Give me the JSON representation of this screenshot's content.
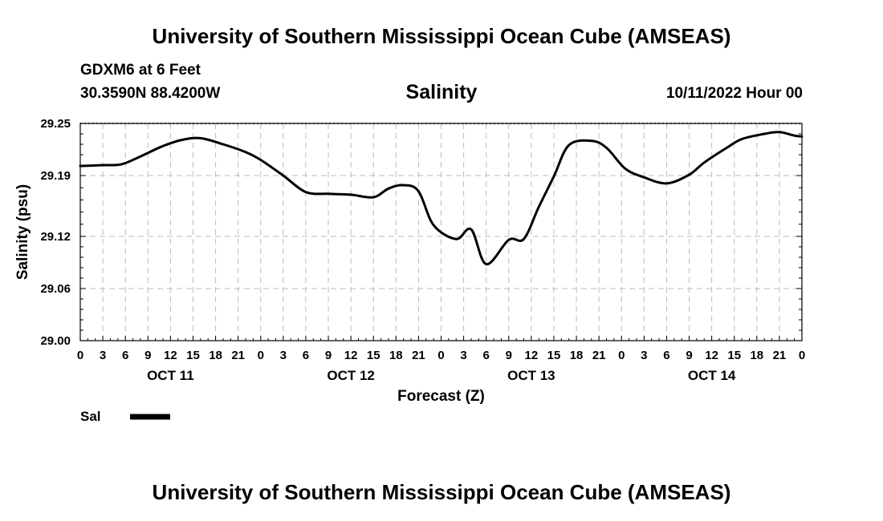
{
  "header": {
    "title": "University of Southern Mississippi Ocean Cube (AMSEAS)",
    "station": "GDXM6 at 6 Feet",
    "coords": "30.3590N  88.4200W",
    "subtitle": "Salinity",
    "datetime": "10/11/2022 Hour 00"
  },
  "footer": {
    "title": "University of Southern Mississippi Ocean Cube (AMSEAS)"
  },
  "colors": {
    "line": "#000000",
    "grid": "#bbbbbb",
    "background": "#ffffff"
  },
  "chart_data": {
    "type": "line",
    "title": "Salinity",
    "xlabel": "Forecast (Z)",
    "ylabel": "Salinity (psu)",
    "ylim": [
      29.0,
      29.25
    ],
    "xlim": [
      0,
      96
    ],
    "y_ticks": [
      "29.25",
      "29.19",
      "29.12",
      "29.06",
      "29.00"
    ],
    "x_tick_labels": [
      "0",
      "3",
      "6",
      "9",
      "12",
      "15",
      "18",
      "21",
      "0",
      "3",
      "6",
      "9",
      "12",
      "15",
      "18",
      "21",
      "0",
      "3",
      "6",
      "9",
      "12",
      "15",
      "18",
      "21",
      "0",
      "3",
      "6",
      "9",
      "12",
      "15",
      "18",
      "21",
      "0"
    ],
    "day_labels": [
      {
        "label": "OCT 11",
        "hour": 12
      },
      {
        "label": "OCT 12",
        "hour": 36
      },
      {
        "label": "OCT 13",
        "hour": 60
      },
      {
        "label": "OCT 14",
        "hour": 84
      }
    ],
    "grid": true,
    "legend": [
      {
        "name": "Sal",
        "position": "bottom-left"
      }
    ],
    "series": [
      {
        "name": "Sal",
        "x": [
          0,
          3,
          5.5,
          8,
          11,
          13.5,
          16,
          19,
          22,
          24,
          27,
          30,
          33,
          36,
          39,
          41,
          43,
          45,
          47,
          50,
          52,
          54,
          57,
          59,
          61,
          63,
          65,
          68,
          70,
          72.5,
          75,
          78,
          81,
          83,
          86,
          88,
          91,
          93,
          95,
          96
        ],
        "y": [
          29.201,
          29.202,
          29.203,
          29.212,
          29.224,
          29.231,
          29.233,
          29.226,
          29.217,
          29.208,
          29.19,
          29.171,
          29.169,
          29.168,
          29.165,
          29.175,
          29.179,
          29.172,
          29.133,
          29.117,
          29.128,
          29.088,
          29.116,
          29.117,
          29.154,
          29.189,
          29.225,
          29.23,
          29.222,
          29.198,
          29.188,
          29.181,
          29.191,
          29.205,
          29.222,
          29.232,
          29.238,
          29.24,
          29.236,
          29.235
        ]
      }
    ]
  }
}
